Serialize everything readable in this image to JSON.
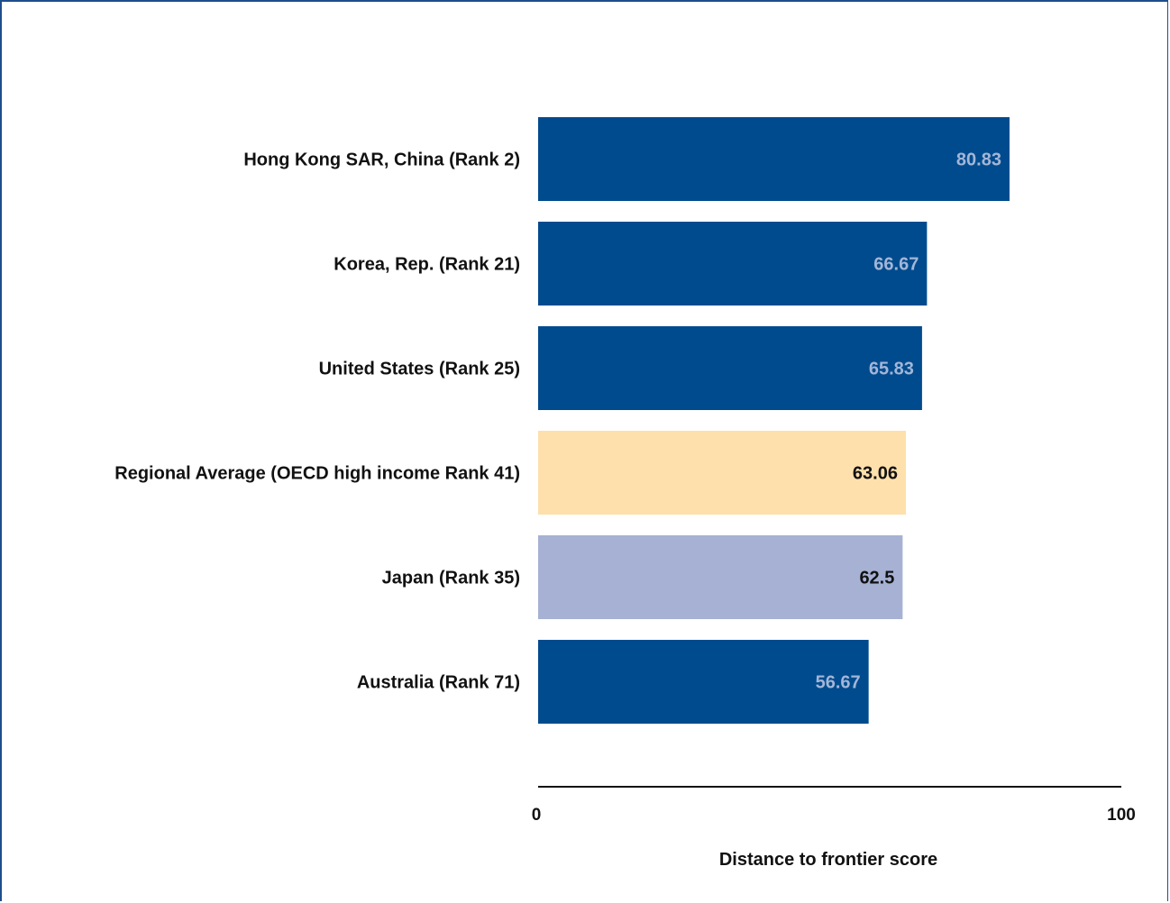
{
  "chart_data": {
    "type": "bar",
    "orientation": "horizontal",
    "categories": [
      "Hong Kong SAR, China (Rank 2)",
      "Korea, Rep. (Rank 21)",
      "United States (Rank 25)",
      "Regional Average (OECD high income Rank 41)",
      "Japan (Rank 35)",
      "Australia (Rank 71)"
    ],
    "values": [
      80.83,
      66.67,
      65.83,
      63.06,
      62.5,
      56.67
    ],
    "value_labels": [
      "80.83",
      "66.67",
      "65.83",
      "63.06",
      "62.5",
      "56.67"
    ],
    "bar_colors": [
      "#004b8d",
      "#004b8d",
      "#004b8d",
      "#fde0ab",
      "#a6b1d4",
      "#004b8d"
    ],
    "value_label_colors": [
      "#a3b6d8",
      "#a3b6d8",
      "#a3b6d8",
      "#111111",
      "#111111",
      "#a3b6d8"
    ],
    "xlabel": "Distance to frontier score",
    "ylabel": "",
    "xlim": [
      0,
      100
    ],
    "x_ticks": [
      "0",
      "100"
    ],
    "grid": false,
    "legend": "none"
  }
}
